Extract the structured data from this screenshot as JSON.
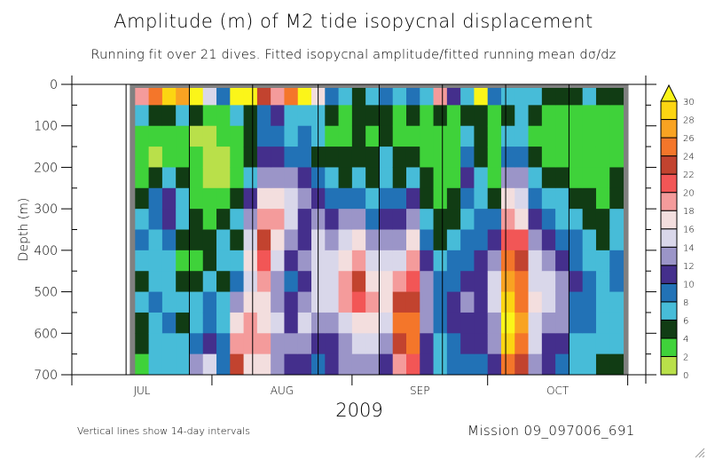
{
  "chart_data": {
    "type": "heatmap",
    "title": "Amplitude (m) of M2 tide isopycnal displacement",
    "subtitle": "Running fit over 21 dives. Fitted isopycnal amplitude/fitted running mean dσ/dz",
    "xlabel": "2009",
    "ylabel": "Depth (m)",
    "ylim": [
      0,
      700
    ],
    "y_inverted": true,
    "y_ticks": [
      0,
      100,
      200,
      300,
      400,
      500,
      600,
      700
    ],
    "x_range_days": [
      0,
      127
    ],
    "x_month_ticks_day": [
      0,
      31,
      62,
      92,
      123
    ],
    "x_month_labels": [
      {
        "label": "JUL",
        "day": 15.5
      },
      {
        "label": "AUG",
        "day": 46.5
      },
      {
        "label": "SEP",
        "day": 77
      },
      {
        "label": "OCT",
        "day": 107.5
      }
    ],
    "data_start_marker_day": 12,
    "data_extent_days": [
      14,
      122
    ],
    "interval_lines_day": [
      12,
      26,
      40,
      54.5,
      68,
      82,
      96,
      110
    ],
    "interval_note": "Vertical lines show 14-day intervals",
    "mission": "Mission 09_097006_691",
    "colorbar": {
      "levels": [
        0,
        2,
        4,
        6,
        8,
        10,
        12,
        14,
        16,
        18,
        20,
        22,
        24,
        26,
        28,
        30
      ],
      "colors": [
        "#b9e04a",
        "#3fd23a",
        "#113c14",
        "#47bcd8",
        "#2272b6",
        "#442f8c",
        "#9b95c8",
        "#d9d7ea",
        "#f3dede",
        "#f49b9b",
        "#f25656",
        "#c2432f",
        "#f4762a",
        "#f9a322",
        "#fcd512"
      ],
      "over_color": "#fbf519",
      "extend": "max"
    },
    "missing_color": "#808080",
    "depth_bins_m": [
      0,
      50,
      100,
      150,
      200,
      250,
      300,
      350,
      400,
      450,
      500,
      550,
      600,
      650,
      700
    ],
    "time_bins_days": [
      14,
      17,
      20,
      23,
      26,
      29,
      32,
      35,
      38,
      41,
      44,
      47,
      50,
      53,
      56,
      59,
      62,
      65,
      68,
      71,
      74,
      77,
      80,
      83,
      86,
      89,
      92,
      95,
      98,
      101,
      104,
      107,
      110,
      113,
      116,
      119,
      122
    ],
    "amplitude_grid_estimated": [
      [
        18,
        6,
        3,
        2,
        3,
        5,
        7,
        8,
        6,
        5,
        6,
        5,
        4,
        3
      ],
      [
        24,
        4,
        3,
        1,
        5,
        9,
        8,
        7,
        6,
        7,
        8,
        7,
        6,
        6
      ],
      [
        28,
        5,
        3,
        3,
        6,
        11,
        10,
        8,
        7,
        6,
        7,
        8,
        7,
        6
      ],
      [
        26,
        6,
        2,
        3,
        4,
        6,
        7,
        5,
        3,
        5,
        6,
        5,
        6,
        7
      ],
      [
        30,
        4,
        1,
        2,
        3,
        2,
        4,
        5,
        3,
        4,
        7,
        6,
        9,
        12
      ],
      [
        14,
        3,
        1,
        1,
        1,
        3,
        3,
        4,
        4,
        6,
        8,
        9,
        11,
        14
      ],
      [
        8,
        2,
        2,
        1,
        1,
        2,
        5,
        7,
        6,
        5,
        7,
        6,
        8,
        9
      ],
      [
        30,
        7,
        2,
        3,
        2,
        4,
        6,
        5,
        7,
        8,
        12,
        17,
        19,
        22
      ],
      [
        31,
        5,
        4,
        5,
        7,
        10,
        12,
        15,
        16,
        15,
        17,
        19,
        18,
        16
      ],
      [
        22,
        8,
        9,
        10,
        12,
        16,
        19,
        22,
        21,
        18,
        16,
        17,
        18,
        16
      ],
      [
        18,
        11,
        9,
        11,
        13,
        16,
        18,
        17,
        15,
        13,
        12,
        14,
        13,
        12
      ],
      [
        24,
        7,
        6,
        9,
        13,
        15,
        14,
        12,
        10,
        9,
        10,
        11,
        13,
        11
      ],
      [
        31,
        6,
        8,
        9,
        11,
        12,
        10,
        11,
        12,
        11,
        12,
        14,
        12,
        10
      ],
      [
        16,
        7,
        6,
        5,
        9,
        11,
        13,
        14,
        15,
        14,
        14,
        12,
        11,
        9
      ],
      [
        8,
        5,
        3,
        4,
        6,
        9,
        11,
        12,
        14,
        15,
        14,
        12,
        11,
        10
      ],
      [
        6,
        3,
        3,
        4,
        5,
        8,
        12,
        15,
        17,
        19,
        18,
        15,
        13,
        12
      ],
      [
        5,
        4,
        4,
        5,
        6,
        9,
        12,
        16,
        19,
        22,
        20,
        17,
        14,
        13
      ],
      [
        7,
        4,
        3,
        4,
        5,
        7,
        9,
        12,
        15,
        17,
        19,
        16,
        14,
        12
      ],
      [
        9,
        5,
        5,
        6,
        7,
        9,
        11,
        13,
        15,
        16,
        16,
        14,
        12,
        11
      ],
      [
        6,
        3,
        3,
        4,
        5,
        8,
        10,
        13,
        15,
        18,
        22,
        25,
        22,
        18
      ],
      [
        8,
        4,
        3,
        5,
        7,
        10,
        13,
        16,
        18,
        20,
        22,
        25,
        24,
        20
      ],
      [
        7,
        3,
        2,
        3,
        4,
        5,
        7,
        9,
        11,
        12,
        13,
        12,
        11,
        10
      ],
      [
        18,
        4,
        2,
        2,
        3,
        3,
        4,
        5,
        6,
        8,
        9,
        8,
        7,
        6
      ],
      [
        10,
        3,
        2,
        2,
        3,
        4,
        5,
        7,
        8,
        9,
        10,
        10,
        9,
        9
      ],
      [
        6,
        5,
        6,
        8,
        10,
        9,
        7,
        8,
        9,
        11,
        12,
        11,
        10,
        9
      ],
      [
        30,
        4,
        4,
        5,
        6,
        7,
        8,
        9,
        10,
        11,
        11,
        10,
        10,
        9
      ],
      [
        8,
        3,
        3,
        2,
        3,
        5,
        8,
        10,
        12,
        14,
        14,
        13,
        12,
        11
      ],
      [
        6,
        5,
        6,
        8,
        13,
        16,
        18,
        21,
        24,
        27,
        28,
        30,
        28,
        24
      ],
      [
        7,
        6,
        7,
        9,
        12,
        15,
        17,
        20,
        22,
        24,
        25,
        26,
        24,
        22
      ],
      [
        6,
        4,
        3,
        4,
        6,
        9,
        11,
        13,
        14,
        15,
        16,
        15,
        14,
        13
      ],
      [
        5,
        3,
        2,
        3,
        4,
        6,
        8,
        10,
        13,
        15,
        14,
        12,
        11,
        10
      ],
      [
        4,
        2,
        2,
        3,
        4,
        6,
        7,
        9,
        11,
        12,
        12,
        13,
        11,
        9
      ],
      [
        5,
        3,
        2,
        3,
        3,
        4,
        6,
        8,
        9,
        10,
        9,
        8,
        7,
        7
      ],
      [
        6,
        3,
        2,
        2,
        3,
        4,
        5,
        6,
        7,
        8,
        8,
        8,
        7,
        6
      ],
      [
        4,
        3,
        2,
        2,
        3,
        3,
        4,
        5,
        6,
        7,
        7,
        6,
        6,
        5
      ],
      [
        5,
        2,
        2,
        3,
        4,
        5,
        6,
        7,
        8,
        8,
        7,
        6,
        6,
        5
      ]
    ]
  },
  "window": {
    "resize_grip": "resize-grip-icon"
  }
}
